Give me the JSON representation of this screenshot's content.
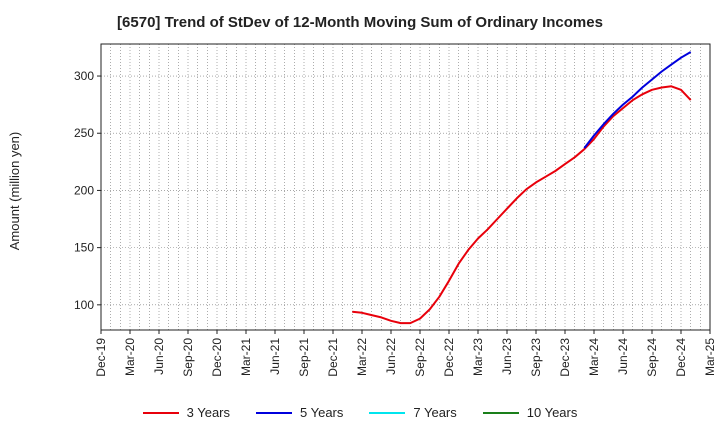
{
  "chart_data": {
    "type": "line",
    "title": "[6570]  Trend of StDev of 12-Month Moving Sum of Ordinary Incomes",
    "ylabel": "Amount (million yen)",
    "xlabel": "",
    "ylim": [
      78,
      328
    ],
    "yticks": [
      100,
      150,
      200,
      250,
      300
    ],
    "x_tick_labels": [
      "Dec-19",
      "Mar-20",
      "Jun-20",
      "Sep-20",
      "Dec-20",
      "Mar-21",
      "Jun-21",
      "Sep-21",
      "Dec-21",
      "Mar-22",
      "Jun-22",
      "Sep-22",
      "Dec-22",
      "Mar-23",
      "Jun-23",
      "Sep-23",
      "Dec-23",
      "Mar-24",
      "Jun-24",
      "Sep-24",
      "Dec-24",
      "Mar-25"
    ],
    "grid": true,
    "legend_position": "bottom",
    "series": [
      {
        "name": "3 Years",
        "color": "#e8000b",
        "points": [
          [
            "Feb-22",
            94
          ],
          [
            "Mar-22",
            93
          ],
          [
            "Apr-22",
            91
          ],
          [
            "May-22",
            89
          ],
          [
            "Jun-22",
            86
          ],
          [
            "Jul-22",
            84
          ],
          [
            "Aug-22",
            84
          ],
          [
            "Sep-22",
            88
          ],
          [
            "Oct-22",
            96
          ],
          [
            "Nov-22",
            107
          ],
          [
            "Dec-22",
            121
          ],
          [
            "Jan-23",
            136
          ],
          [
            "Feb-23",
            148
          ],
          [
            "Mar-23",
            158
          ],
          [
            "Apr-23",
            166
          ],
          [
            "May-23",
            175
          ],
          [
            "Jun-23",
            184
          ],
          [
            "Jul-23",
            193
          ],
          [
            "Aug-23",
            201
          ],
          [
            "Sep-23",
            207
          ],
          [
            "Oct-23",
            212
          ],
          [
            "Nov-23",
            217
          ],
          [
            "Dec-23",
            223
          ],
          [
            "Jan-24",
            229
          ],
          [
            "Feb-24",
            236
          ],
          [
            "Mar-24",
            245
          ],
          [
            "Apr-24",
            256
          ],
          [
            "May-24",
            265
          ],
          [
            "Jun-24",
            272
          ],
          [
            "Jul-24",
            279
          ],
          [
            "Aug-24",
            284
          ],
          [
            "Sep-24",
            288
          ],
          [
            "Oct-24",
            290
          ],
          [
            "Nov-24",
            291
          ],
          [
            "Dec-24",
            288
          ],
          [
            "Jan-25",
            279
          ]
        ]
      },
      {
        "name": "5 Years",
        "color": "#0000dd",
        "points": [
          [
            "Feb-24",
            237
          ],
          [
            "Mar-24",
            248
          ],
          [
            "Apr-24",
            258
          ],
          [
            "May-24",
            267
          ],
          [
            "Jun-24",
            275
          ],
          [
            "Jul-24",
            282
          ],
          [
            "Aug-24",
            290
          ],
          [
            "Sep-24",
            297
          ],
          [
            "Oct-24",
            304
          ],
          [
            "Nov-24",
            310
          ],
          [
            "Dec-24",
            316
          ],
          [
            "Jan-25",
            321
          ]
        ]
      },
      {
        "name": "7 Years",
        "color": "#00e5ee",
        "points": []
      },
      {
        "name": "10 Years",
        "color": "#1a7f1a",
        "points": []
      }
    ]
  }
}
